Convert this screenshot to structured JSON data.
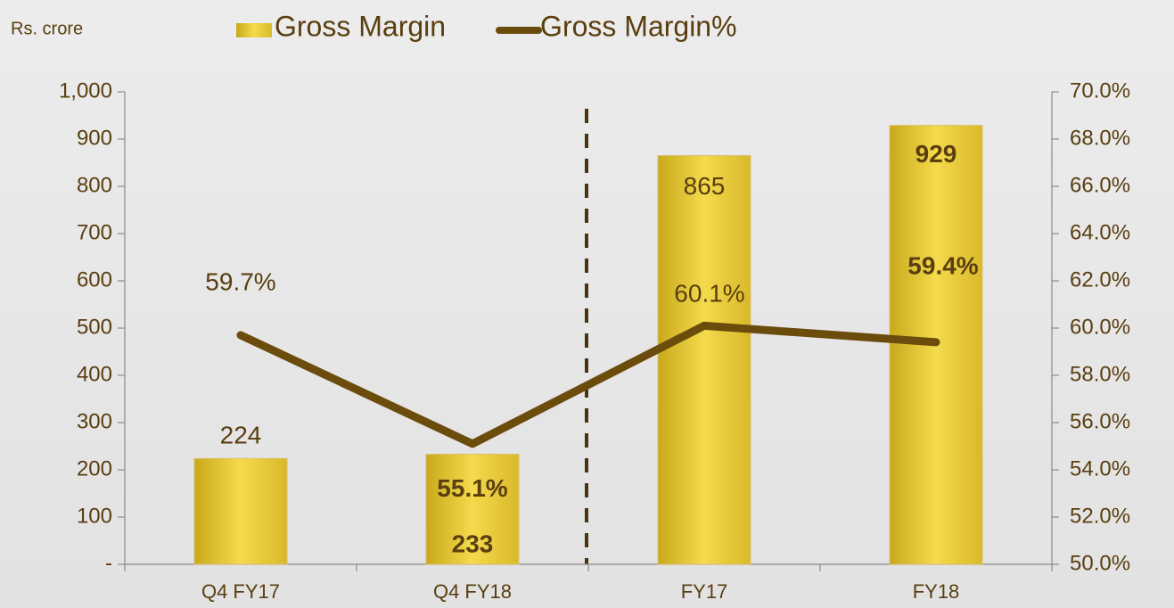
{
  "chart_data": {
    "type": "bar_line",
    "y_label": "Rs. crore",
    "categories": [
      "Q4 FY17",
      "Q4 FY18",
      "FY17",
      "FY18"
    ],
    "series": [
      {
        "name": "Gross Margin",
        "type": "bar",
        "color": "#e8c832",
        "values": [
          224,
          233,
          865,
          929
        ]
      },
      {
        "name": "Gross Margin%",
        "type": "line",
        "axis": "y2",
        "color": "#6b4c0c",
        "values": [
          59.7,
          55.1,
          60.1,
          59.4
        ],
        "value_labels": [
          "59.7%",
          "55.1%",
          "60.1%",
          "59.4%"
        ]
      }
    ],
    "ylim": [
      0,
      1000
    ],
    "yticks": [
      {
        "value": 0,
        "label": "-"
      },
      100,
      200,
      300,
      400,
      500,
      600,
      700,
      800,
      900,
      {
        "value": 1000,
        "label": "1,000"
      }
    ],
    "y2lim": [
      50,
      70
    ],
    "y2ticks": [
      {
        "value": 50,
        "label": "50.0%"
      },
      {
        "value": 52,
        "label": "52.0%"
      },
      {
        "value": 54,
        "label": "54.0%"
      },
      {
        "value": 56,
        "label": "56.0%"
      },
      {
        "value": 58,
        "label": "58.0%"
      },
      {
        "value": 60,
        "label": "60.0%"
      },
      {
        "value": 62,
        "label": "62.0%"
      },
      {
        "value": 64,
        "label": "64.0%"
      },
      {
        "value": 66,
        "label": "66.0%"
      },
      {
        "value": 68,
        "label": "68.0%"
      },
      {
        "value": 70,
        "label": "70.0%"
      }
    ],
    "legend": "top"
  }
}
